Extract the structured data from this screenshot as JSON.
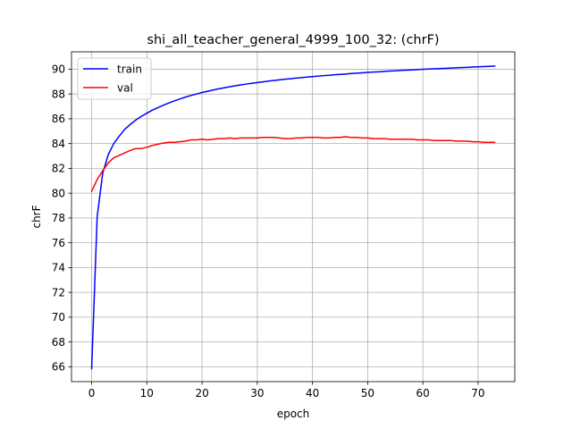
{
  "chart_data": {
    "type": "line",
    "title": "shi_all_teacher_general_4999_100_32: (chrF)",
    "xlabel": "epoch",
    "ylabel": "chrF",
    "xlim": [
      -3.65,
      76.65
    ],
    "ylim": [
      64.8,
      91.4
    ],
    "xticks": [
      0,
      10,
      20,
      30,
      40,
      50,
      60,
      70
    ],
    "yticks": [
      66,
      68,
      70,
      72,
      74,
      76,
      78,
      80,
      82,
      84,
      86,
      88,
      90
    ],
    "grid": true,
    "legend_position": "top-left",
    "series": [
      {
        "name": "train",
        "color": "#0000ff",
        "x": [
          0,
          1,
          2,
          3,
          4,
          5,
          6,
          7,
          8,
          9,
          10,
          11,
          12,
          13,
          14,
          15,
          16,
          17,
          18,
          19,
          20,
          21,
          22,
          23,
          24,
          25,
          26,
          27,
          28,
          29,
          30,
          31,
          32,
          33,
          34,
          35,
          36,
          37,
          38,
          39,
          40,
          41,
          42,
          43,
          44,
          45,
          46,
          47,
          48,
          49,
          50,
          51,
          52,
          53,
          54,
          55,
          56,
          57,
          58,
          59,
          60,
          61,
          62,
          63,
          64,
          65,
          66,
          67,
          68,
          69,
          70,
          71,
          72,
          73
        ],
        "y": [
          65.85,
          78.1,
          81.6,
          83.1,
          84.0,
          84.6,
          85.15,
          85.55,
          85.9,
          86.2,
          86.45,
          86.7,
          86.9,
          87.1,
          87.28,
          87.45,
          87.6,
          87.75,
          87.88,
          88.0,
          88.12,
          88.22,
          88.32,
          88.42,
          88.5,
          88.58,
          88.66,
          88.73,
          88.8,
          88.86,
          88.92,
          88.98,
          89.04,
          89.09,
          89.14,
          89.19,
          89.23,
          89.28,
          89.32,
          89.36,
          89.4,
          89.44,
          89.48,
          89.51,
          89.55,
          89.58,
          89.61,
          89.65,
          89.68,
          89.71,
          89.74,
          89.77,
          89.79,
          89.82,
          89.85,
          89.87,
          89.9,
          89.92,
          89.94,
          89.97,
          89.99,
          90.01,
          90.03,
          90.05,
          90.07,
          90.09,
          90.11,
          90.13,
          90.15,
          90.17,
          90.19,
          90.21,
          90.23,
          90.25
        ]
      },
      {
        "name": "val",
        "color": "#ff0000",
        "x": [
          0,
          1,
          2,
          3,
          4,
          5,
          6,
          7,
          8,
          9,
          10,
          11,
          12,
          13,
          14,
          15,
          16,
          17,
          18,
          19,
          20,
          21,
          22,
          23,
          24,
          25,
          26,
          27,
          28,
          29,
          30,
          31,
          32,
          33,
          34,
          35,
          36,
          37,
          38,
          39,
          40,
          41,
          42,
          43,
          44,
          45,
          46,
          47,
          48,
          49,
          50,
          51,
          52,
          53,
          54,
          55,
          56,
          57,
          58,
          59,
          60,
          61,
          62,
          63,
          64,
          65,
          66,
          67,
          68,
          69,
          70,
          71,
          72,
          73
        ],
        "y": [
          80.15,
          81.1,
          81.8,
          82.45,
          82.85,
          83.05,
          83.25,
          83.45,
          83.6,
          83.6,
          83.7,
          83.85,
          83.95,
          84.05,
          84.1,
          84.1,
          84.15,
          84.2,
          84.3,
          84.3,
          84.35,
          84.3,
          84.35,
          84.4,
          84.4,
          84.45,
          84.4,
          84.45,
          84.45,
          84.45,
          84.45,
          84.5,
          84.5,
          84.5,
          84.45,
          84.4,
          84.4,
          84.45,
          84.45,
          84.5,
          84.5,
          84.5,
          84.45,
          84.45,
          84.5,
          84.5,
          84.55,
          84.5,
          84.5,
          84.45,
          84.45,
          84.4,
          84.4,
          84.4,
          84.35,
          84.35,
          84.35,
          84.35,
          84.35,
          84.3,
          84.3,
          84.3,
          84.25,
          84.25,
          84.25,
          84.25,
          84.2,
          84.2,
          84.2,
          84.15,
          84.15,
          84.1,
          84.1,
          84.1
        ]
      }
    ]
  }
}
